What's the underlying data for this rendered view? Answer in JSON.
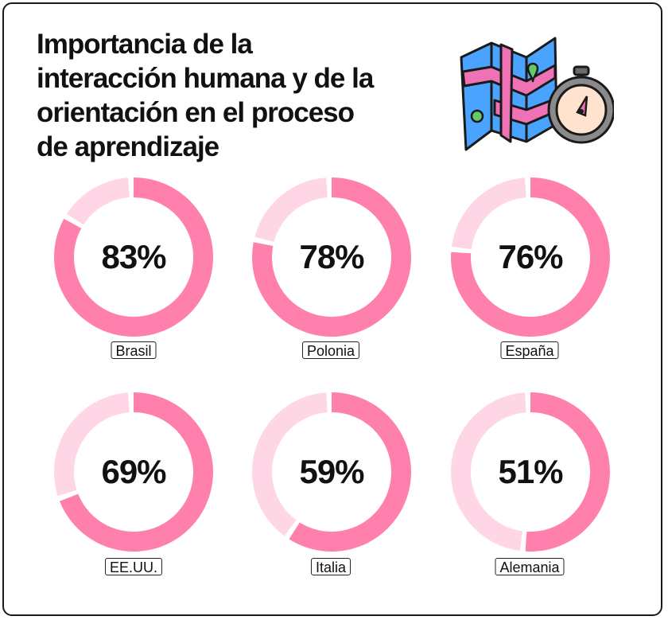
{
  "title_lines": [
    "Importancia de la",
    "interacción humana y de la",
    "orientación en el proceso",
    "de aprendizaje"
  ],
  "colors": {
    "accent": "#ff80ad",
    "track": "#ffd6e5",
    "text": "#111111",
    "map_blue": "#4aa3ff",
    "map_pink": "#f072b6",
    "map_green": "#64c96a",
    "compass_face": "#ffe3cf"
  },
  "chart_data": {
    "type": "pie",
    "subtype": "donut",
    "title": "Importancia de la interacción humana y de la orientación en el proceso de aprendizaje",
    "categories": [
      "Brasil",
      "Polonia",
      "España",
      "EE.UU.",
      "Italia",
      "Alemania"
    ],
    "values": [
      83,
      78,
      76,
      69,
      59,
      51
    ],
    "value_labels": [
      "83%",
      "78%",
      "76%",
      "69%",
      "59%",
      "51%"
    ],
    "unit": "%",
    "max": 100
  }
}
